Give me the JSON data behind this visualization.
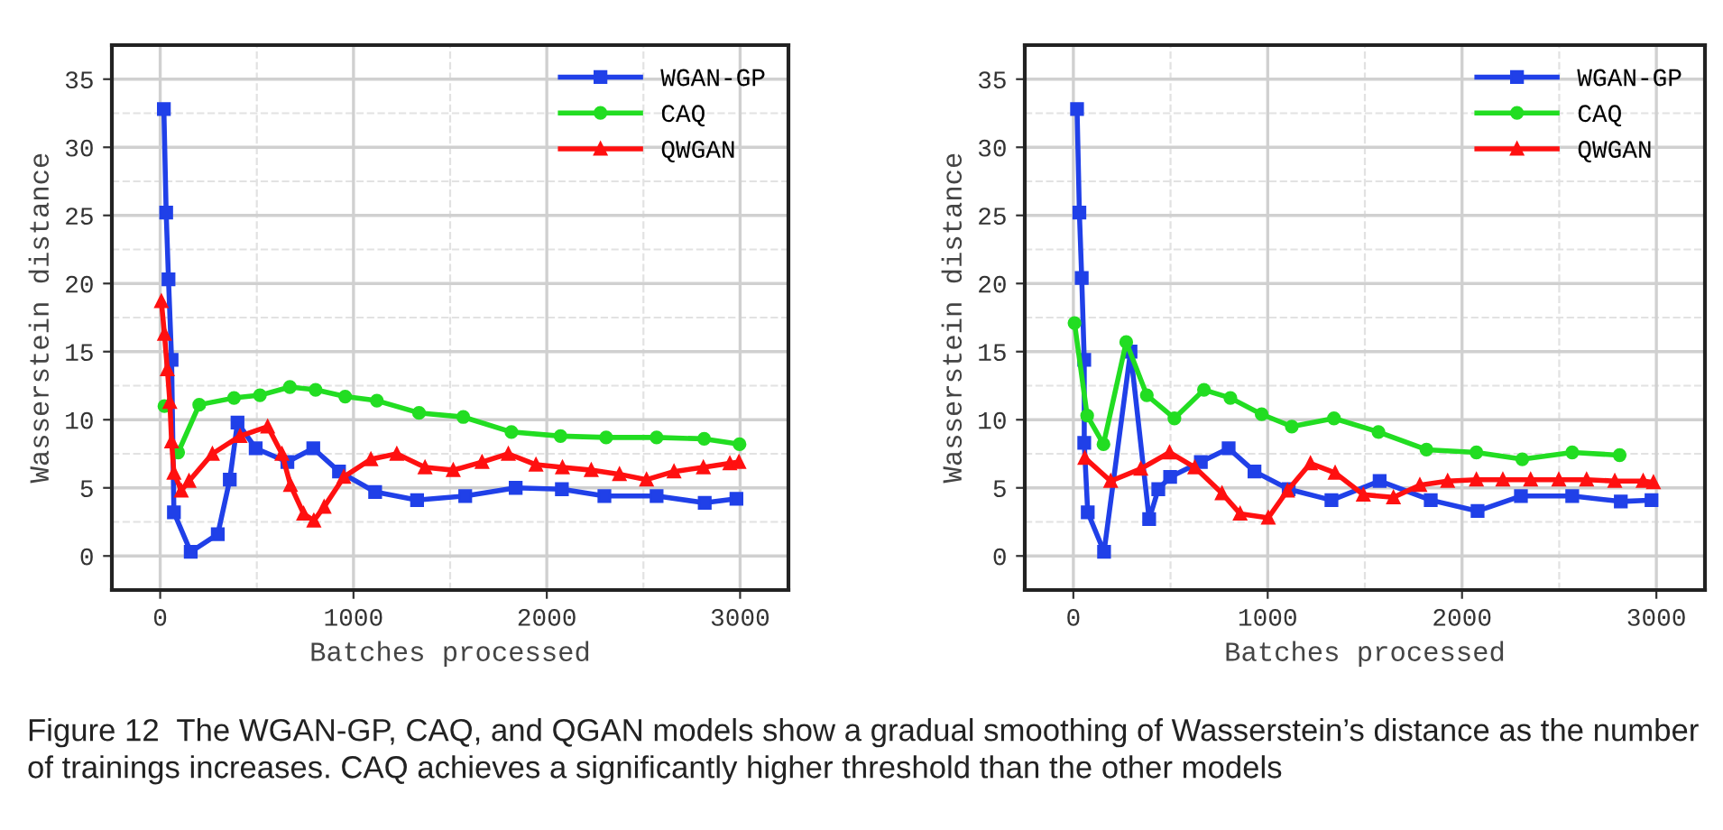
{
  "chart_data": [
    {
      "type": "line",
      "xlabel": "Batches processed",
      "ylabel": "Wasserstein distance",
      "xlim": [
        -250,
        3250
      ],
      "ylim": [
        -2.5,
        37.5
      ],
      "xticks": [
        0,
        1000,
        2000,
        3000
      ],
      "yticks": [
        0,
        5,
        10,
        15,
        20,
        25,
        30,
        35
      ],
      "grid": true,
      "legend": "top right",
      "line_style": "solid",
      "annotations": [
        "Figure 12  The WGAN-GP, CAQ, and QGAN models show a gradual smoothing of Wasserstein’s distance as the number of trainings increases. CAQ achieves a significantly higher threshold than the other models"
      ],
      "series": [
        {
          "name": "WGAN-GP",
          "color": "#2040e8",
          "marker": "square",
          "x": [
            19,
            31,
            43,
            59,
            71,
            158,
            298,
            360,
            400,
            494,
            658,
            792,
            925,
            1112,
            1329,
            1578,
            1839,
            2078,
            2298,
            2568,
            2817,
            2981
          ],
          "values": [
            32.8,
            25.2,
            20.3,
            14.4,
            3.2,
            0.3,
            1.6,
            5.6,
            9.8,
            7.9,
            6.9,
            7.9,
            6.2,
            4.7,
            4.1,
            4.4,
            5.0,
            4.9,
            4.4,
            4.4,
            3.9,
            4.2
          ]
        },
        {
          "name": "CAQ",
          "color": "#22dd22",
          "marker": "circle",
          "x": [
            22,
            53,
            93,
            202,
            382,
            516,
            671,
            804,
            957,
            1121,
            1339,
            1568,
            1817,
            2071,
            2307,
            2568,
            2814,
            2997
          ],
          "values": [
            11.0,
            null,
            7.6,
            11.1,
            11.6,
            11.8,
            12.4,
            12.2,
            11.7,
            11.4,
            10.5,
            10.2,
            9.1,
            8.8,
            8.7,
            8.7,
            8.6,
            8.2
          ]
        },
        {
          "name": "QWGAN",
          "color": "#ff1010",
          "marker": "triangle",
          "x": [
            6,
            22,
            37,
            50,
            59,
            71,
            109,
            149,
            270,
            413,
            556,
            630,
            674,
            742,
            795,
            848,
            950,
            1090,
            1224,
            1370,
            1516,
            1665,
            1801,
            1944,
            2081,
            2230,
            2376,
            2516,
            2658,
            2810,
            2947,
            2994
          ],
          "values": [
            18.7,
            16.3,
            13.7,
            11.3,
            8.4,
            6.1,
            4.8,
            5.5,
            7.5,
            8.8,
            9.5,
            7.5,
            5.2,
            3.1,
            2.6,
            3.6,
            5.8,
            7.1,
            7.5,
            6.5,
            6.3,
            6.9,
            7.5,
            6.7,
            6.5,
            6.3,
            6.0,
            5.6,
            6.2,
            6.5,
            6.8,
            6.9
          ]
        }
      ]
    },
    {
      "type": "line",
      "xlabel": "Batches processed",
      "ylabel": "Wasserstein distance",
      "xlim": [
        -250,
        3250
      ],
      "ylim": [
        -2.5,
        37.5
      ],
      "xticks": [
        0,
        1000,
        2000,
        3000
      ],
      "yticks": [
        0,
        5,
        10,
        15,
        20,
        25,
        30,
        35
      ],
      "grid": true,
      "legend": "top right",
      "line_style": "solid",
      "series": [
        {
          "name": "WGAN-GP",
          "color": "#2040e8",
          "marker": "square",
          "x": [
            19,
            31,
            43,
            56,
            56,
            74,
            158,
            294,
            390,
            437,
            498,
            656,
            799,
            932,
            1108,
            1328,
            1576,
            1839,
            2080,
            2303,
            2567,
            2817,
            2975
          ],
          "values": [
            32.8,
            25.2,
            20.4,
            14.4,
            8.3,
            3.2,
            0.3,
            15.0,
            2.7,
            4.9,
            5.8,
            6.9,
            7.9,
            6.2,
            4.9,
            4.1,
            5.5,
            4.1,
            3.3,
            4.4,
            4.4,
            4.0,
            4.1
          ]
        },
        {
          "name": "CAQ",
          "color": "#22dd22",
          "marker": "circle",
          "x": [
            6,
            71,
            155,
            272,
            378,
            520,
            672,
            808,
            969,
            1124,
            1341,
            1570,
            1817,
            2074,
            2310,
            2567,
            2811
          ],
          "values": [
            17.1,
            10.3,
            8.2,
            15.7,
            11.8,
            10.1,
            12.2,
            11.6,
            10.4,
            9.5,
            10.1,
            9.1,
            7.8,
            7.6,
            7.1,
            7.6,
            7.4
          ]
        },
        {
          "name": "QWGAN",
          "color": "#ff1010",
          "marker": "triangle",
          "x": [
            59,
            192,
            347,
            495,
            625,
            765,
            858,
            1003,
            1102,
            1220,
            1347,
            1492,
            1647,
            1783,
            1926,
            2074,
            2210,
            2353,
            2498,
            2641,
            2786,
            2932,
            2985
          ],
          "values": [
            7.2,
            5.5,
            6.4,
            7.6,
            6.5,
            4.6,
            3.1,
            2.8,
            4.8,
            6.8,
            6.1,
            4.5,
            4.3,
            5.2,
            5.5,
            5.6,
            5.6,
            5.6,
            5.6,
            5.6,
            5.5,
            5.5,
            5.4
          ]
        }
      ]
    }
  ]
}
